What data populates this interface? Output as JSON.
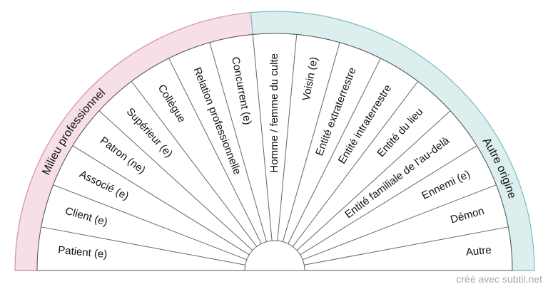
{
  "band_left": {
    "label": "Milieu professionnel",
    "color": "#f6dfe6",
    "stroke": "#d98ca4"
  },
  "band_right": {
    "label": "Autre origine",
    "color": "#dcefee",
    "stroke": "#7fbcbc"
  },
  "sectors": [
    "Patient (e)",
    "Client (e)",
    "Associé (e)",
    "Patron (ne)",
    "Supérieur (e)",
    "Collègue",
    "Relation professionnelle",
    "Concurrent (e)",
    "Homme / femme du culte",
    "Voisin (e)",
    "Entité extraterrestre",
    "Entité intraterrestre",
    "Entité du lieu",
    "Entité familiale de l'au-delà",
    "Ennemi (e)",
    "Démon",
    "Autre"
  ],
  "credit": "créé avec subtil.net"
}
